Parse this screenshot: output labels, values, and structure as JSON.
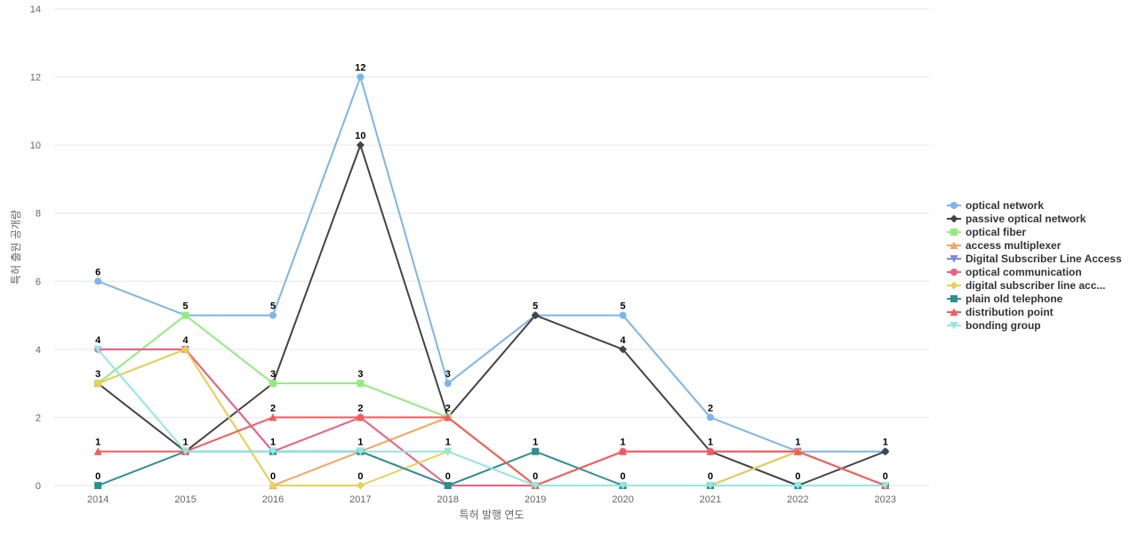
{
  "chart_data": {
    "type": "line",
    "xlabel": "특허 발행 연도",
    "ylabel": "특허 출원 공개량",
    "ylim": [
      0,
      14
    ],
    "yticks": [
      0,
      2,
      4,
      6,
      8,
      10,
      12,
      14
    ],
    "grid": true,
    "legend_position": "right",
    "categories": [
      "2014",
      "2015",
      "2016",
      "2017",
      "2018",
      "2019",
      "2020",
      "2021",
      "2022",
      "2023"
    ],
    "series": [
      {
        "name": "optical network",
        "color": "#7cb5ec",
        "marker": "circle",
        "values": [
          6,
          5,
          5,
          12,
          3,
          5,
          5,
          2,
          1,
          1
        ],
        "labels": {
          "0": "6",
          "1": "5",
          "2": "5",
          "3": "12",
          "4": "3",
          "5": "5",
          "6": "5",
          "7": "2"
        }
      },
      {
        "name": "passive optical network",
        "color": "#434348",
        "marker": "diamond",
        "values": [
          3,
          1,
          3,
          10,
          2,
          5,
          4,
          1,
          0,
          1
        ],
        "labels": {
          "2": "3",
          "3": "10",
          "4": "2",
          "6": "4",
          "7": "1",
          "9": "1"
        }
      },
      {
        "name": "optical fiber",
        "color": "#90ed7d",
        "marker": "square",
        "values": [
          3,
          5,
          3,
          3,
          2,
          0,
          0,
          0,
          1,
          0
        ],
        "labels": {
          "3": "3"
        }
      },
      {
        "name": "access multiplexer",
        "color": "#f7a35c",
        "marker": "triangle",
        "values": [
          3,
          4,
          0,
          1,
          2,
          0,
          0,
          0,
          1,
          0
        ],
        "labels": {}
      },
      {
        "name": "Digital Subscriber Line Access",
        "color": "#8085e9",
        "marker": "triangle-down",
        "values": [
          4,
          4,
          1,
          1,
          0,
          0,
          0,
          0,
          1,
          0
        ],
        "labels": {}
      },
      {
        "name": "optical communication",
        "color": "#f15c80",
        "marker": "circle",
        "values": [
          4,
          4,
          1,
          2,
          0,
          0,
          1,
          1,
          1,
          0
        ],
        "labels": {
          "1": "4"
        }
      },
      {
        "name": "digital subscriber line acc...",
        "color": "#e4d354",
        "marker": "diamond",
        "values": [
          3,
          4,
          0,
          0,
          1,
          0,
          0,
          0,
          1,
          0
        ],
        "labels": {
          "0": "3",
          "2": "0",
          "3": "0"
        }
      },
      {
        "name": "plain old telephone",
        "color": "#2b908f",
        "marker": "square",
        "values": [
          0,
          1,
          1,
          1,
          0,
          1,
          0,
          0,
          0,
          0
        ],
        "labels": {
          "0": "0",
          "4": "0",
          "5": "1",
          "6": "0",
          "7": "0",
          "8": "0",
          "9": "0"
        }
      },
      {
        "name": "distribution point",
        "color": "#f45b5b",
        "marker": "triangle",
        "values": [
          1,
          1,
          2,
          2,
          2,
          0,
          1,
          1,
          1,
          0
        ],
        "labels": {
          "0": "1",
          "1": "1",
          "2": "2",
          "3": "2",
          "5": "0",
          "6": "1",
          "8": "1"
        }
      },
      {
        "name": "bonding group",
        "color": "#91e8e1",
        "marker": "triangle-down",
        "values": [
          4,
          1,
          1,
          1,
          1,
          0,
          0,
          0,
          0,
          0
        ],
        "labels": {
          "0": "4",
          "2": "1",
          "3": "1",
          "4": "1"
        }
      }
    ]
  }
}
